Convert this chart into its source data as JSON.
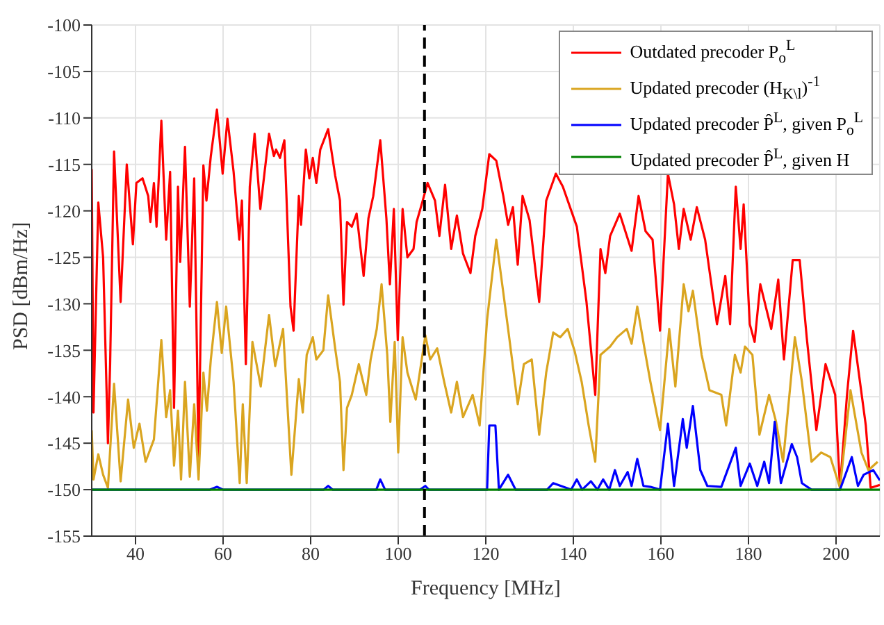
{
  "chart_data": {
    "type": "line",
    "xlabel": "Frequency [MHz]",
    "ylabel": "PSD [dBm/Hz]",
    "xlim": [
      30,
      210
    ],
    "ylim": [
      -155,
      -100
    ],
    "xticks": [
      40,
      60,
      80,
      100,
      120,
      140,
      160,
      180,
      200
    ],
    "yticks": [
      -155,
      -150,
      -145,
      -140,
      -135,
      -130,
      -125,
      -120,
      -115,
      -110,
      -105,
      -100
    ],
    "grid": true,
    "legend": "top right",
    "line_style": "solid",
    "ref_lines": [
      {
        "axis": "x",
        "value": 106,
        "color": "#000000",
        "line_style": "dashed"
      }
    ],
    "series": [
      {
        "name": "Outdated precoder P$_{o}$$^{L}$",
        "color": "#ff0000",
        "x": [
          30,
          30.4,
          31.5,
          32.6,
          33.7,
          34.2,
          35.1,
          36.6,
          38,
          39.4,
          40.2,
          41.6,
          42.9,
          43.4,
          44.2,
          44.8,
          45.9,
          47,
          47.9,
          48.8,
          49.7,
          50.2,
          51.3,
          52.4,
          53.4,
          54.4,
          55.5,
          56.2,
          57.2,
          58.6,
          59.9,
          61,
          62.4,
          63.7,
          64.3,
          65.2,
          66.1,
          67.2,
          68.5,
          70.5,
          71.6,
          72.1,
          73,
          74,
          75.4,
          76.1,
          77.3,
          77.8,
          78.9,
          79.7,
          80.5,
          81.3,
          82.2,
          84,
          85.6,
          86.7,
          87.5,
          88.3,
          89.4,
          90.5,
          92.1,
          93.2,
          94.3,
          95.9,
          97.3,
          98.1,
          99,
          99.9,
          101,
          102.1,
          103.5,
          104.2,
          105.6,
          106.7,
          108.4,
          109.4,
          110.7,
          112.1,
          113.4,
          114.8,
          116.5,
          117.6,
          119.2,
          120.8,
          122.4,
          124,
          125.1,
          126.2,
          127.3,
          128.4,
          130,
          132.2,
          133.8,
          136,
          137.6,
          140.8,
          143,
          145,
          146.2,
          147.3,
          148.4,
          150.6,
          153.3,
          154.9,
          156.5,
          158.1,
          159.8,
          161.6,
          163,
          164.1,
          165.2,
          166.8,
          168.2,
          170.1,
          172.8,
          174.7,
          175.8,
          177.1,
          178.2,
          178.9,
          180.3,
          181.4,
          182.7,
          185.2,
          186.8,
          188.1,
          190.1,
          191.7,
          193.3,
          195.5,
          197.6,
          199.8,
          200.9,
          202.5,
          203.9,
          206.8,
          207.9,
          210
        ],
        "values": [
          -115.5,
          -141.7,
          -119.1,
          -125,
          -145,
          -136.5,
          -113.6,
          -129.8,
          -115,
          -123.6,
          -117,
          -116.5,
          -118.4,
          -121.2,
          -117,
          -121.7,
          -110.3,
          -123.1,
          -115.8,
          -141.2,
          -117.4,
          -125.5,
          -113.1,
          -130.3,
          -116.5,
          -146.5,
          -115.1,
          -118.9,
          -114.1,
          -109.1,
          -116,
          -110.1,
          -115.8,
          -123.1,
          -118.9,
          -136.5,
          -117.4,
          -111.7,
          -119.8,
          -111.7,
          -114.1,
          -113.4,
          -114.3,
          -112.4,
          -130.3,
          -132.9,
          -118.4,
          -121.5,
          -113.4,
          -116.5,
          -114.3,
          -117,
          -113.4,
          -111.2,
          -116.2,
          -118.9,
          -130.1,
          -121.2,
          -121.7,
          -120.3,
          -127,
          -120.8,
          -118.4,
          -112.4,
          -120.8,
          -127.9,
          -119.8,
          -133.9,
          -119.8,
          -125,
          -124.1,
          -121.2,
          -118.9,
          -117,
          -118.9,
          -122.7,
          -117.2,
          -124.1,
          -120.5,
          -124.6,
          -126.7,
          -122.7,
          -119.8,
          -113.9,
          -114.6,
          -118.4,
          -121.5,
          -119.6,
          -125.8,
          -118.4,
          -121,
          -129.8,
          -118.9,
          -116,
          -117.4,
          -121.7,
          -129.8,
          -139.8,
          -124.1,
          -126.7,
          -122.7,
          -120.3,
          -124.3,
          -118.4,
          -122.2,
          -123.1,
          -132.9,
          -116,
          -119.3,
          -124.1,
          -119.8,
          -123.1,
          -119.6,
          -123.1,
          -132.2,
          -127,
          -132.2,
          -117.4,
          -124.1,
          -119.3,
          -132.2,
          -134.1,
          -127.9,
          -132.7,
          -127.4,
          -136,
          -125.3,
          -125.3,
          -133.6,
          -143.6,
          -136.5,
          -139.8,
          -149.8,
          -139.8,
          -132.9,
          -143.1,
          -149.8,
          -149.5
        ]
      },
      {
        "name": "Updated precoder (H$_{K\\l}$)$^{-1}$",
        "color": "#daa520",
        "x": [
          30,
          30.4,
          31.5,
          32.6,
          33.7,
          35.1,
          36.6,
          38.3,
          39.6,
          40.9,
          42.3,
          44.2,
          45.9,
          47,
          47.9,
          48.8,
          49.7,
          50.4,
          51.3,
          52.4,
          53.4,
          54.4,
          55.5,
          56.3,
          57.2,
          58.6,
          59.7,
          60.7,
          62.4,
          63.8,
          64.5,
          65.4,
          66.7,
          68.6,
          70.5,
          71.9,
          73.7,
          75.6,
          77.3,
          78.2,
          79.1,
          80.5,
          81.3,
          82.9,
          84,
          85.6,
          86.7,
          87.5,
          88.3,
          89.4,
          91,
          92.7,
          93.7,
          95.1,
          96.2,
          97.5,
          98.2,
          99.2,
          100,
          101,
          102.1,
          104,
          106.2,
          107.3,
          108.9,
          110.5,
          112.1,
          113.4,
          114.8,
          117,
          118.6,
          120.3,
          122.4,
          125.1,
          127.3,
          128.7,
          130.5,
          132.2,
          133.8,
          135.4,
          137,
          138.7,
          140.3,
          141.9,
          143.5,
          145,
          146.2,
          148.4,
          150,
          152.2,
          153.3,
          154.6,
          156.5,
          157.6,
          159.8,
          161.9,
          163.3,
          165.2,
          166.3,
          167.3,
          169.3,
          171.1,
          173.8,
          174.9,
          176.9,
          178.2,
          179.2,
          180.9,
          182.5,
          184.7,
          186.3,
          187.9,
          190.6,
          192.2,
          194.4,
          196.6,
          198.7,
          200.9,
          203.3,
          205.8,
          207.4,
          209.5
        ],
        "values": [
          -143.6,
          -148.9,
          -146.2,
          -148.4,
          -149.8,
          -138.6,
          -149.1,
          -140.3,
          -145.5,
          -142.9,
          -147,
          -144.6,
          -133.9,
          -142.2,
          -139.3,
          -147.4,
          -141.5,
          -148.9,
          -138.4,
          -148.6,
          -140.8,
          -148.9,
          -137.4,
          -141.5,
          -136,
          -129.8,
          -135.3,
          -130.3,
          -138.4,
          -149.3,
          -140.8,
          -149.3,
          -134.1,
          -138.9,
          -131.2,
          -136.7,
          -132.7,
          -148.4,
          -138.1,
          -141.7,
          -135.5,
          -133.6,
          -136,
          -135,
          -129.1,
          -134.8,
          -138.4,
          -147.9,
          -141.2,
          -139.8,
          -136.5,
          -139.8,
          -136,
          -132.7,
          -127.9,
          -135.5,
          -142.7,
          -134.1,
          -146,
          -133.6,
          -137.4,
          -140.3,
          -133.4,
          -136,
          -134.8,
          -138.4,
          -141.7,
          -138.4,
          -142.2,
          -139.8,
          -143.1,
          -131.7,
          -123.1,
          -132.7,
          -140.8,
          -136.5,
          -136,
          -144.1,
          -137.4,
          -133.1,
          -133.6,
          -132.7,
          -135.1,
          -138.4,
          -143.1,
          -147,
          -135.5,
          -134.6,
          -133.6,
          -132.7,
          -134.3,
          -130.3,
          -135.5,
          -138.4,
          -143.6,
          -132.7,
          -138.9,
          -127.9,
          -130.8,
          -128.6,
          -135.5,
          -139.3,
          -139.8,
          -143.1,
          -135.5,
          -137.4,
          -134.6,
          -135.5,
          -144.1,
          -139.8,
          -142.7,
          -147,
          -133.6,
          -138.4,
          -147,
          -146,
          -146.5,
          -149.8,
          -139.3,
          -146,
          -147.9,
          -147
        ]
      },
      {
        "name": "Updated precoder P̂$^{L}$, given P$_{o}$$^{L}$",
        "color": "#0000ff",
        "x": [
          30,
          57,
          58.6,
          60,
          83,
          84,
          85,
          95,
          95.9,
          97,
          105,
          106.2,
          107,
          120.3,
          120.8,
          122.2,
          123,
          125.1,
          126.8,
          134,
          135.4,
          139.5,
          140.8,
          142,
          144,
          145.5,
          146.8,
          148.2,
          149.5,
          150.6,
          152.4,
          153.3,
          154.6,
          156,
          157.6,
          159.8,
          161.6,
          163,
          165,
          165.9,
          167.3,
          169,
          170.6,
          173.8,
          177.1,
          178.2,
          180.3,
          182,
          183.6,
          184.7,
          186,
          187.4,
          189.9,
          191.1,
          192.2,
          194.4,
          200.9,
          203.6,
          205,
          206.3,
          208.5,
          210
        ],
        "values": [
          -150,
          -150,
          -149.7,
          -150,
          -150,
          -149.6,
          -150,
          -150,
          -148.9,
          -150,
          -150,
          -149.6,
          -150,
          -150,
          -143.1,
          -143.1,
          -150,
          -148.4,
          -150,
          -150,
          -149.3,
          -150,
          -148.9,
          -150,
          -149.1,
          -150,
          -148.9,
          -150,
          -147.9,
          -149.6,
          -148.1,
          -149.6,
          -146.7,
          -149.6,
          -149.7,
          -150,
          -142.9,
          -149.6,
          -142.4,
          -145.5,
          -141,
          -147.9,
          -149.6,
          -149.7,
          -145.5,
          -149.6,
          -147.2,
          -149.6,
          -147,
          -149.3,
          -142.7,
          -149.3,
          -145.1,
          -146.5,
          -149.3,
          -150,
          -150,
          -146.5,
          -149.6,
          -148.4,
          -147.9,
          -149
        ]
      },
      {
        "name": "Updated precoder P̂$^{L}$, given H",
        "color": "#008000",
        "x": [
          30,
          40,
          50,
          60,
          70,
          80,
          90,
          100,
          110,
          120,
          130,
          140,
          150,
          160,
          170,
          180,
          190,
          200,
          210
        ],
        "values": [
          -150,
          -150,
          -150,
          -150,
          -150,
          -150,
          -150,
          -150,
          -150,
          -150,
          -150,
          -150,
          -150,
          -150,
          -150,
          -150,
          -150,
          -150,
          -150
        ]
      }
    ]
  }
}
